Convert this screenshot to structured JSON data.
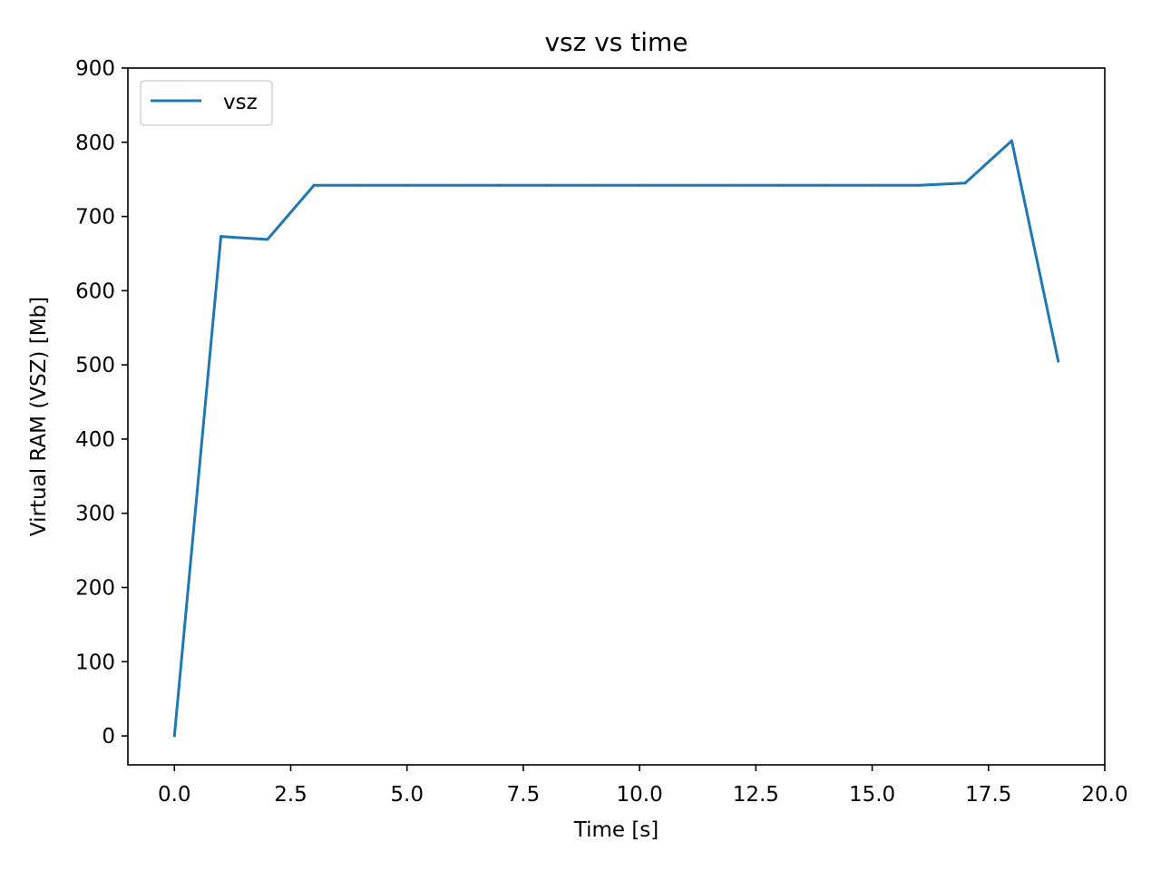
{
  "chart_data": {
    "type": "line",
    "title": "vsz vs time",
    "xlabel": "Time [s]",
    "ylabel": "Virtual RAM (VSZ) [Mb]",
    "xlim": [
      -1,
      20
    ],
    "ylim": [
      -39,
      900
    ],
    "xticks": [
      0.0,
      2.5,
      5.0,
      7.5,
      10.0,
      12.5,
      15.0,
      17.5,
      20.0
    ],
    "xtick_labels": [
      "0.0",
      "2.5",
      "5.0",
      "7.5",
      "10.0",
      "12.5",
      "15.0",
      "17.5",
      "20.0"
    ],
    "yticks": [
      0,
      100,
      200,
      300,
      400,
      500,
      600,
      700,
      800,
      900
    ],
    "ytick_labels": [
      "0",
      "100",
      "200",
      "300",
      "400",
      "500",
      "600",
      "700",
      "800",
      "900"
    ],
    "grid": false,
    "legend_position": "upper left",
    "series": [
      {
        "name": "vsz",
        "color": "#1f77b4",
        "x": [
          0,
          1,
          2,
          3,
          4,
          5,
          6,
          7,
          8,
          9,
          10,
          11,
          12,
          13,
          14,
          15,
          16,
          17,
          18,
          19
        ],
        "y": [
          0,
          673,
          669,
          742,
          742,
          742,
          742,
          742,
          742,
          742,
          742,
          742,
          742,
          742,
          742,
          742,
          742,
          745,
          802,
          505
        ]
      }
    ]
  }
}
